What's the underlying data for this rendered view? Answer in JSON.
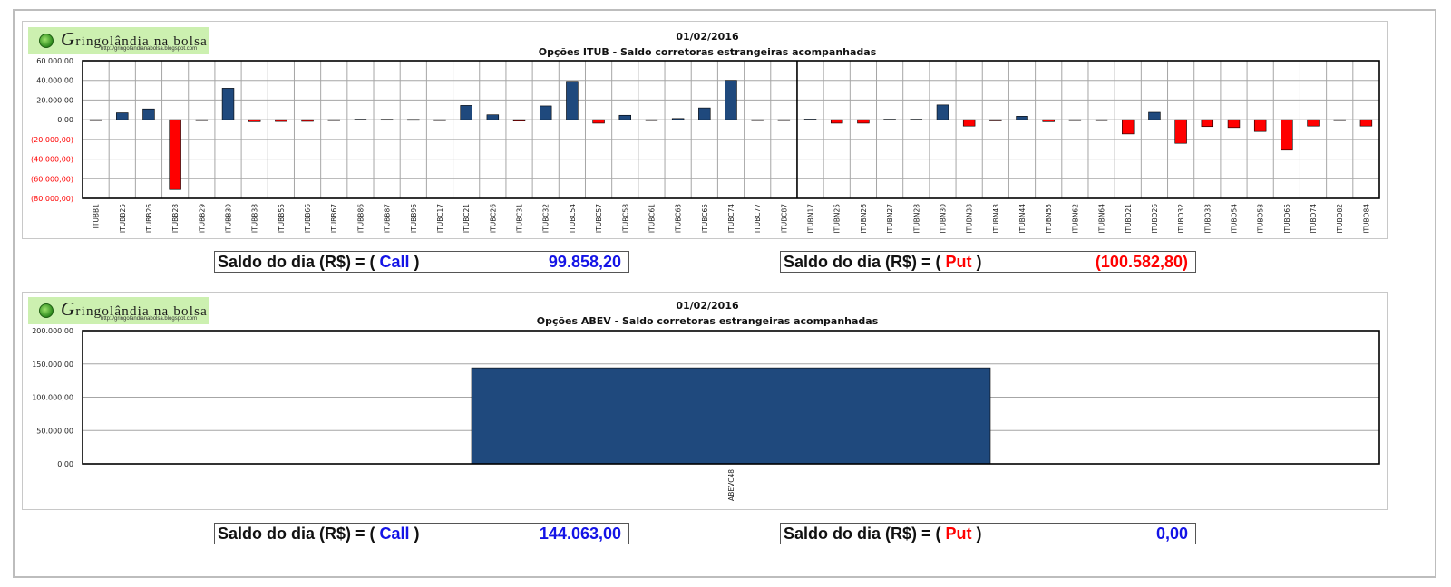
{
  "colors": {
    "call": "#1F497D",
    "put": "#FF0000",
    "call_text": "#1414E6",
    "put_text": "#FF0000",
    "negative_tick": "#FF0000"
  },
  "logo": {
    "brand_initial": "G",
    "brand_rest": "ringolândia na bolsa",
    "url": "http://gringolandianabolsa.blogspot.com"
  },
  "chart_data": [
    {
      "type": "bar",
      "title": "01/02/2016",
      "subtitle": "Opções  ITUB - Saldo corretoras estrangeiras acompanhadas",
      "ylim": [
        -80000,
        60000
      ],
      "yticks": [
        60000,
        40000,
        20000,
        0,
        -20000,
        -40000,
        -60000,
        -80000
      ],
      "ytick_labels": [
        "60.000,00",
        "40.000,00",
        "20.000,00",
        "0,00",
        "(20.000,00)",
        "(40.000,00)",
        "(60.000,00)",
        "(80.000,00)"
      ],
      "grid": true,
      "divider_after_index": 26,
      "categories": [
        "ITUBB1",
        "ITUBB25",
        "ITUBB26",
        "ITUBB28",
        "ITUBB29",
        "ITUBB30",
        "ITUBB38",
        "ITUBB55",
        "ITUBB66",
        "ITUBB67",
        "ITUBB86",
        "ITUBB87",
        "ITUBB96",
        "ITUBC17",
        "ITUBC21",
        "ITUBC26",
        "ITUBC31",
        "ITUBC32",
        "ITUBC54",
        "ITUBC57",
        "ITUBC58",
        "ITUBC61",
        "ITUBC63",
        "ITUBC65",
        "ITUBC74",
        "ITUBC77",
        "ITUBC87",
        "ITUBN17",
        "ITUBN25",
        "ITUBN26",
        "ITUBN27",
        "ITUBN28",
        "ITUBN30",
        "ITUBN38",
        "ITUBN43",
        "ITUBN44",
        "ITUBN55",
        "ITUBN62",
        "ITUBN64",
        "ITUBO21",
        "ITUBO26",
        "ITUBO32",
        "ITUBO33",
        "ITUBO54",
        "ITUBO58",
        "ITUBO65",
        "ITUBO74",
        "ITUBO82",
        "ITUBO84"
      ],
      "values": [
        -300,
        7000,
        11000,
        -71000,
        -600,
        32000,
        -2000,
        -1800,
        -1700,
        -600,
        500,
        400,
        300,
        -500,
        14500,
        5000,
        -1400,
        14000,
        39000,
        -3500,
        4500,
        -400,
        1200,
        12000,
        40000,
        -300,
        -700,
        600,
        -3500,
        -3500,
        500,
        500,
        15000,
        -6500,
        -1200,
        3500,
        -2000,
        -500,
        -800,
        -14500,
        7500,
        -24000,
        -7000,
        -8000,
        -12000,
        -31000,
        -6500,
        -800,
        -6500
      ]
    },
    {
      "type": "bar",
      "title": "01/02/2016",
      "subtitle": "Opções  ABEV - Saldo corretoras estrangeiras acompanhadas",
      "ylim": [
        0,
        200000
      ],
      "yticks": [
        200000,
        150000,
        100000,
        50000,
        0
      ],
      "ytick_labels": [
        "200.000,00",
        "150.000,00",
        "100.000,00",
        "50.000,00",
        "0,00"
      ],
      "grid": true,
      "categories": [
        "ABEVC48"
      ],
      "values": [
        144063
      ]
    }
  ],
  "summaries": {
    "top": {
      "call": {
        "label_prefix": "Saldo do dia (R$) = ( ",
        "kind": "Call",
        "label_suffix": " )",
        "value": "99.858,20"
      },
      "put": {
        "label_prefix": "Saldo do dia (R$) = ( ",
        "kind": "Put",
        "label_suffix": " )",
        "value": "(100.582,80)"
      }
    },
    "bottom": {
      "call": {
        "label_prefix": "Saldo do dia (R$) = ( ",
        "kind": "Call",
        "label_suffix": " )",
        "value": "144.063,00"
      },
      "put": {
        "label_prefix": "Saldo do dia (R$) = ( ",
        "kind": "Put",
        "label_suffix": " )",
        "value": "0,00"
      }
    }
  }
}
